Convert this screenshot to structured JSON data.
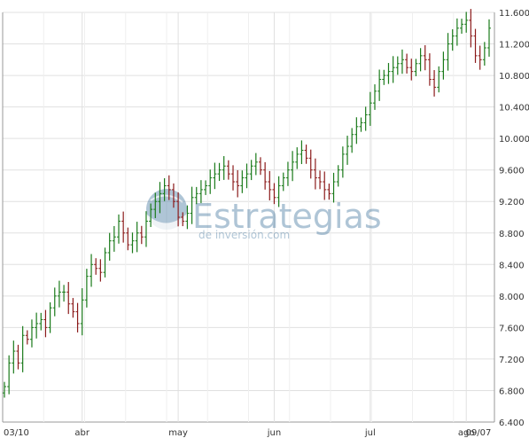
{
  "chart_data": {
    "type": "ohlc",
    "title": "",
    "xlabel": "",
    "ylabel": "",
    "ylim": [
      6400,
      11600
    ],
    "y_ticks": [
      6800,
      7200,
      7600,
      8000,
      8400,
      8800,
      9200,
      9600,
      10000,
      10400,
      10800,
      11200,
      11600
    ],
    "y_tick_labels": [
      "6.800",
      "7.200",
      "7.600",
      "8.000",
      "8.400",
      "8.800",
      "9.200",
      "9.600",
      "10.000",
      "10.400",
      "10.800",
      "11.200",
      "11.600"
    ],
    "y_bottom_label": "6.400",
    "y_axis_side": "right",
    "grid": true,
    "x_labels": [
      "03/10",
      "abr",
      "may",
      "jun",
      "jul",
      "ago",
      "09/07"
    ],
    "up_color": "#1a7a1a",
    "down_color": "#8b1a1a",
    "grid_color": "#e0e0e0",
    "closes": [
      6850,
      7150,
      7300,
      7150,
      7500,
      7450,
      7600,
      7650,
      7700,
      7600,
      7850,
      8000,
      8050,
      8050,
      7900,
      7800,
      7650,
      7950,
      8250,
      8400,
      8350,
      8300,
      8550,
      8700,
      8750,
      8950,
      8800,
      8650,
      8700,
      8800,
      8750,
      8950,
      9100,
      9200,
      9300,
      9400,
      9350,
      9200,
      9000,
      8950,
      9050,
      9250,
      9300,
      9350,
      9400,
      9500,
      9550,
      9600,
      9650,
      9550,
      9450,
      9400,
      9500,
      9550,
      9650,
      9700,
      9600,
      9450,
      9350,
      9250,
      9400,
      9500,
      9600,
      9700,
      9800,
      9850,
      9750,
      9600,
      9500,
      9450,
      9350,
      9300,
      9450,
      9600,
      9800,
      9900,
      10050,
      10150,
      10200,
      10300,
      10450,
      10600,
      10750,
      10800,
      10850,
      10900,
      10950,
      11000,
      10900,
      10850,
      10950,
      11050,
      11000,
      10750,
      10650,
      10850,
      11000,
      11200,
      11300,
      11400,
      11450,
      11500,
      11300,
      11050,
      11000,
      11150,
      11400
    ]
  },
  "watermark": {
    "brand": "Estrategias",
    "tagline": "de inversión.com"
  }
}
